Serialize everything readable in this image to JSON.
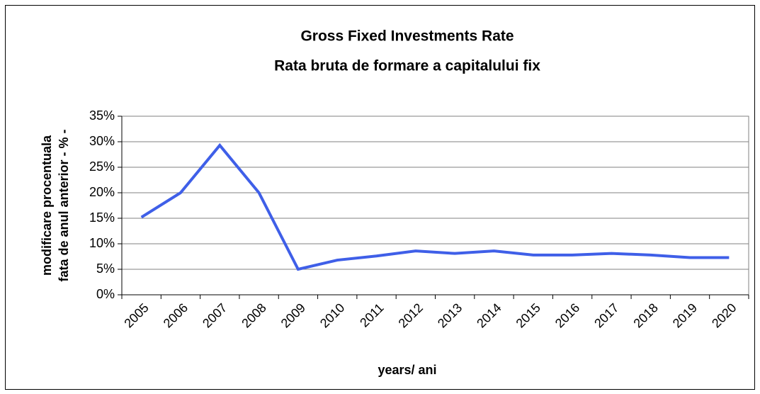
{
  "chart_data": {
    "type": "line",
    "title": "Gross Fixed Investments Rate",
    "subtitle": "Rata bruta de formare a capitalului fix",
    "ylabel": [
      "modificare procentuala",
      "fata de anul anterior - % -"
    ],
    "xlabel": "years/ ani",
    "categories": [
      "2005",
      "2006",
      "2007",
      "2008",
      "2009",
      "2010",
      "2011",
      "2012",
      "2013",
      "2014",
      "2015",
      "2016",
      "2017",
      "2018",
      "2019",
      "2020"
    ],
    "series": [
      {
        "color": "#3f5fe8",
        "values": [
          15.2,
          20,
          29.3,
          20,
          5,
          6.8,
          7.6,
          8.6,
          8.1,
          8.6,
          7.8,
          7.8,
          8.1,
          7.8,
          7.3,
          7.3
        ]
      }
    ],
    "ylim": [
      0,
      35
    ],
    "yticks": [
      {
        "value": 0,
        "label": "0%"
      },
      {
        "value": 5,
        "label": "5%"
      },
      {
        "value": 10,
        "label": "10%"
      },
      {
        "value": 15,
        "label": "15%"
      },
      {
        "value": 20,
        "label": "20%"
      },
      {
        "value": 25,
        "label": "25%"
      },
      {
        "value": 30,
        "label": "30%"
      },
      {
        "value": 35,
        "label": "35%"
      }
    ],
    "grid": true
  }
}
